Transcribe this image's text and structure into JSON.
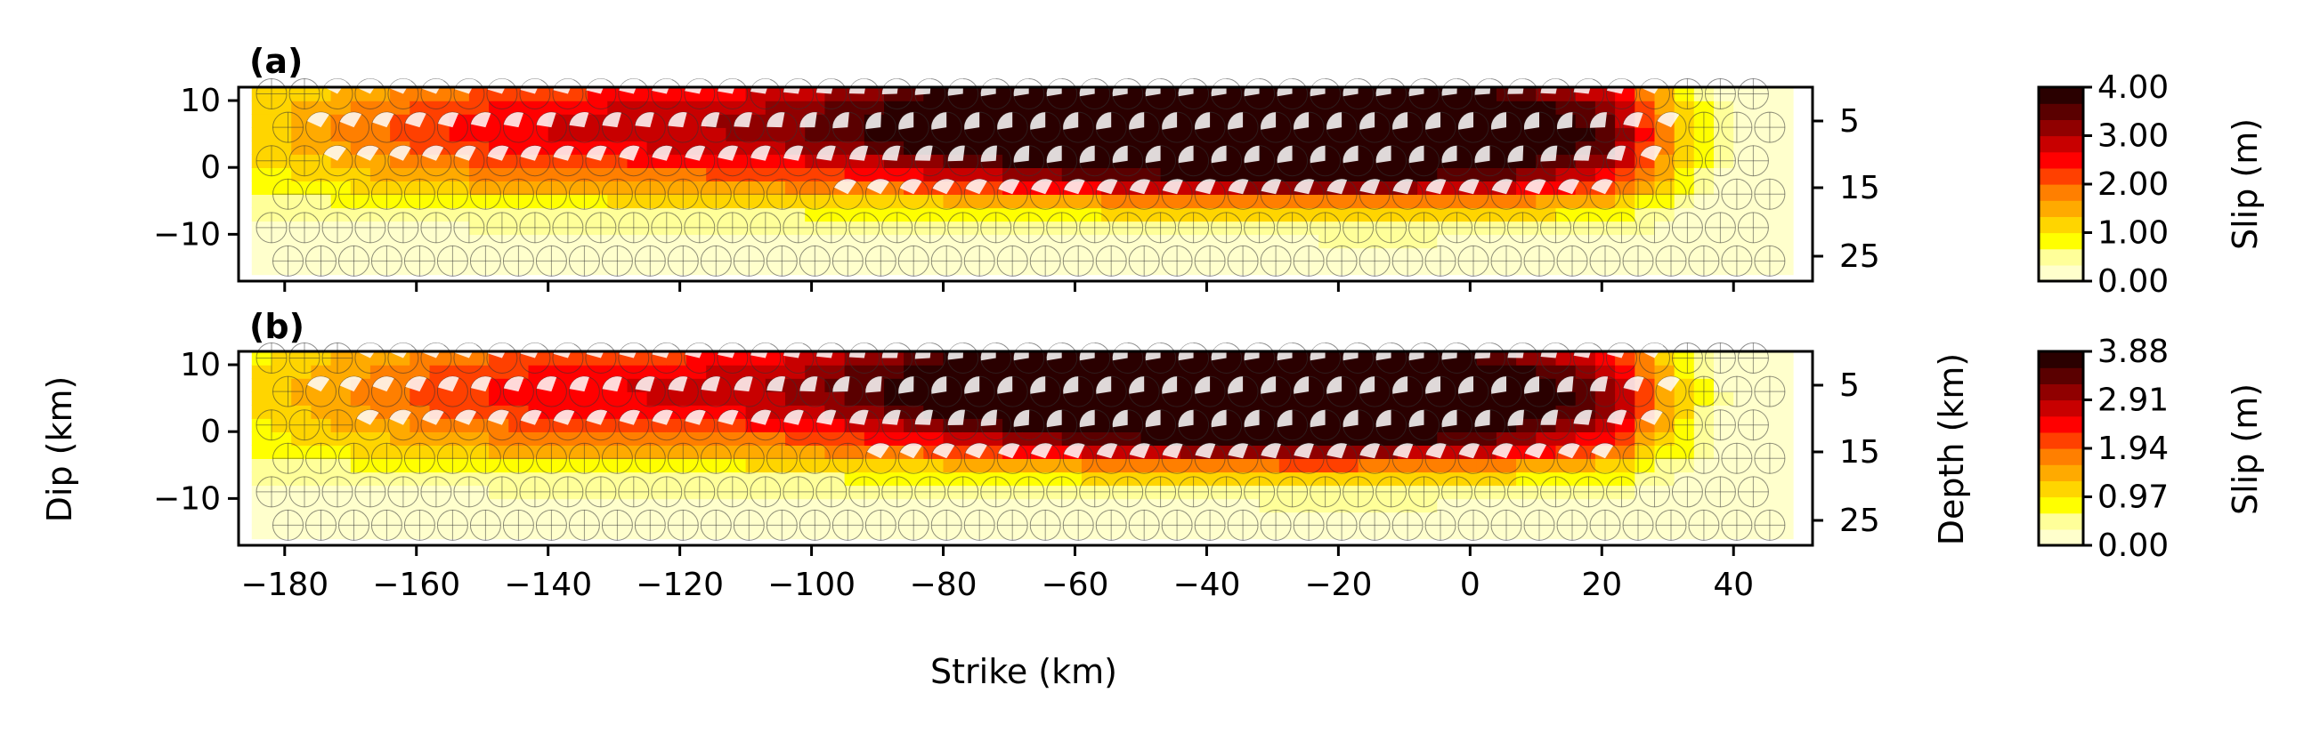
{
  "chart_data": {
    "type": "heatmap",
    "description_of_marks": "fault slip distribution with focal-mechanism beachballs on each subfault",
    "colormap": "hot_r (white-yellow-orange-red-black)",
    "colors": [
      "#ffffcc",
      "#ffff99",
      "#ffff00",
      "#ffd500",
      "#ffaa00",
      "#ff7f00",
      "#ff4000",
      "#ff0000",
      "#c80000",
      "#900000",
      "#5a0000",
      "#2a0000"
    ],
    "shared": {
      "xlabel": "Strike (km)",
      "ylabel_left": "Dip (km)",
      "ylabel_right": "Depth (km)",
      "xlim": [
        -187,
        52
      ],
      "ylim": [
        -17,
        12
      ],
      "xticks": [
        -180,
        -160,
        -140,
        -120,
        -100,
        -80,
        -60,
        -40,
        -20,
        0,
        20,
        40
      ],
      "yticks": [
        10,
        0,
        -10
      ],
      "depth_ticks": [
        5,
        15,
        25
      ],
      "fault_strike_extent": [
        -185,
        48
      ],
      "fault_dip_extent": [
        -16,
        12
      ]
    },
    "panels": [
      {
        "label": "(a)",
        "colorbar_label": "Slip (m)",
        "colorbar_ticks": [
          "4.00",
          "3.00",
          "2.00",
          "1.00",
          "0.00"
        ],
        "vmin": 0.0,
        "vmax": 4.0,
        "slip_patches": [
          {
            "strike": -60,
            "dip": 7,
            "peak_slip": 4.0
          },
          {
            "strike": -2,
            "dip": 5,
            "peak_slip": 3.8
          },
          {
            "strike": -140,
            "dip": 6,
            "peak_slip": 2.2
          }
        ]
      },
      {
        "label": "(b)",
        "colorbar_label": "Slip (m)",
        "colorbar_ticks": [
          "3.88",
          "2.91",
          "1.94",
          "0.97",
          "0.00"
        ],
        "vmin": 0.0,
        "vmax": 3.88,
        "slip_patches": [
          {
            "strike": -58,
            "dip": 7,
            "peak_slip": 3.88
          },
          {
            "strike": -5,
            "dip": 5,
            "peak_slip": 3.5
          },
          {
            "strike": -140,
            "dip": 6,
            "peak_slip": 2.0
          }
        ]
      }
    ]
  }
}
